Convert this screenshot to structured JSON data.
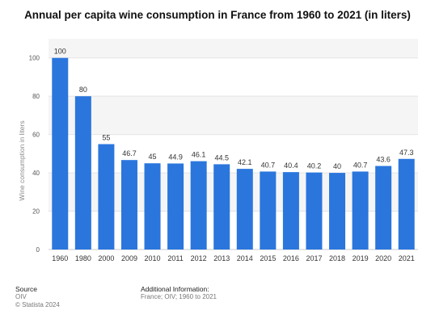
{
  "chart_data": {
    "type": "bar",
    "title": "Annual per capita wine consumption in France from 1960 to 2021 (in liters)",
    "xlabel": "",
    "ylabel": "Wine consumption in liters",
    "categories": [
      "1960",
      "1980",
      "2000",
      "2009",
      "2010",
      "2011",
      "2012",
      "2013",
      "2014",
      "2015",
      "2016",
      "2017",
      "2018",
      "2019",
      "2020",
      "2021"
    ],
    "values": [
      100,
      80,
      55,
      46.7,
      45,
      44.9,
      46.1,
      44.5,
      42.1,
      40.7,
      40.4,
      40.2,
      40,
      40.7,
      43.6,
      47.3
    ],
    "value_labels": [
      "100",
      "80",
      "55",
      "46.7",
      "45",
      "44.9",
      "46.1",
      "44.5",
      "42.1",
      "40.7",
      "40.4",
      "40.2",
      "40",
      "40.7",
      "43.6",
      "47.3"
    ],
    "ylim": [
      0,
      110
    ],
    "yticks": [
      0,
      20,
      40,
      60,
      80,
      100
    ],
    "grid": true,
    "bar_color": "#2a76dd",
    "alt_band_color": "#f5f5f5"
  },
  "footer": {
    "source_heading": "Source",
    "source_line1": "OIV",
    "source_line2": "© Statista 2024",
    "additional_heading": "Additional Information:",
    "additional_text": "France; OIV; 1960 to 2021"
  }
}
